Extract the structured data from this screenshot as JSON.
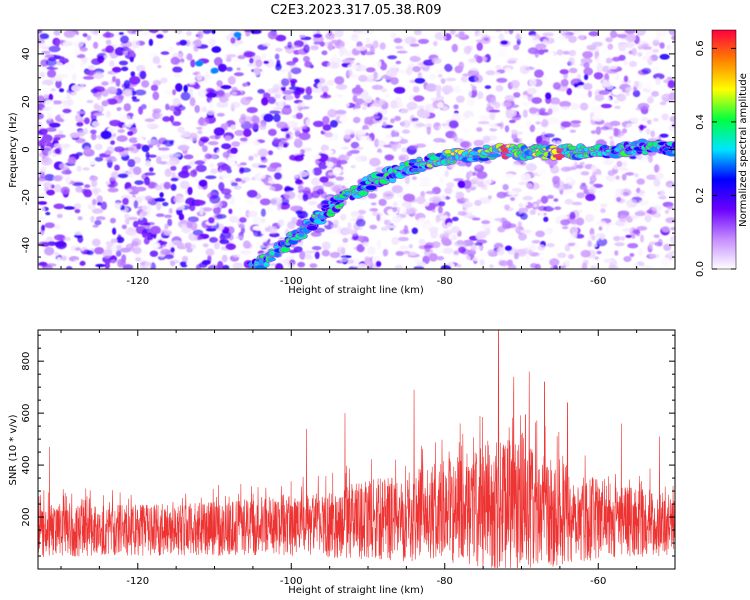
{
  "title": "C2E3.2023.317.05.38.R09",
  "chart_data": [
    {
      "type": "heatmap",
      "xlabel": "Height of straight line (km)",
      "ylabel": "Frequency (Hz)",
      "xlim": [
        -133,
        -50
      ],
      "ylim": [
        -50,
        50
      ],
      "x_ticks": [
        -120,
        -100,
        -80,
        -60
      ],
      "y_ticks": [
        -40,
        -20,
        0,
        20,
        40
      ],
      "colorbar": {
        "label": "Normalized spectral amplitude",
        "range": [
          0,
          0.65
        ],
        "ticks": [
          0.0,
          0.2,
          0.4,
          0.6
        ],
        "colors": [
          "#ffffff",
          "#c58cff",
          "#6a00ff",
          "#0000ff",
          "#00e5ff",
          "#00ff40",
          "#ffff00",
          "#ff8000",
          "#ff0040"
        ]
      },
      "ridge": {
        "points": [
          [
            -105,
            -50
          ],
          [
            -101,
            -40
          ],
          [
            -97,
            -30
          ],
          [
            -93,
            -20
          ],
          [
            -89,
            -13
          ],
          [
            -85,
            -8
          ],
          [
            -81,
            -4
          ],
          [
            -77,
            -2
          ],
          [
            -73,
            -1
          ],
          [
            -69,
            -1
          ],
          [
            -65,
            -1
          ],
          [
            -61,
            -1
          ],
          [
            -57,
            0
          ],
          [
            -53,
            1
          ],
          [
            -50,
            1
          ]
        ]
      },
      "grid": false
    },
    {
      "type": "line",
      "xlabel": "Height of straight line (km)",
      "ylabel": "SNR (10 * v/v)",
      "xlim": [
        -133,
        -50
      ],
      "ylim": [
        0,
        920
      ],
      "x_ticks": [
        -120,
        -100,
        -80,
        -60
      ],
      "y_ticks": [
        200,
        400,
        600,
        800
      ],
      "series": [
        {
          "color": "#ee3333",
          "envelope": {
            "x": [
              -133,
              -125,
              -115,
              -105,
              -95,
              -90,
              -85,
              -80,
              -75,
              -73,
              -70,
              -65,
              -60,
              -55,
              -50
            ],
            "base": [
              140,
              150,
              150,
              160,
              170,
              190,
              200,
              220,
              240,
              240,
              230,
              210,
              190,
              180,
              170
            ],
            "spread": [
              110,
              110,
              110,
              120,
              140,
              170,
              190,
              220,
              260,
              320,
              280,
              220,
              170,
              150,
              130
            ]
          },
          "peaks": [
            [
              -131.5,
              470
            ],
            [
              -98,
              540
            ],
            [
              -93,
              600
            ],
            [
              -84,
              690
            ],
            [
              -78,
              560
            ],
            [
              -73,
              920
            ],
            [
              -71,
              740
            ],
            [
              -69,
              760
            ],
            [
              -67,
              720
            ],
            [
              -64,
              640
            ],
            [
              -57,
              560
            ],
            [
              -52,
              510
            ]
          ]
        }
      ],
      "grid": false
    }
  ]
}
